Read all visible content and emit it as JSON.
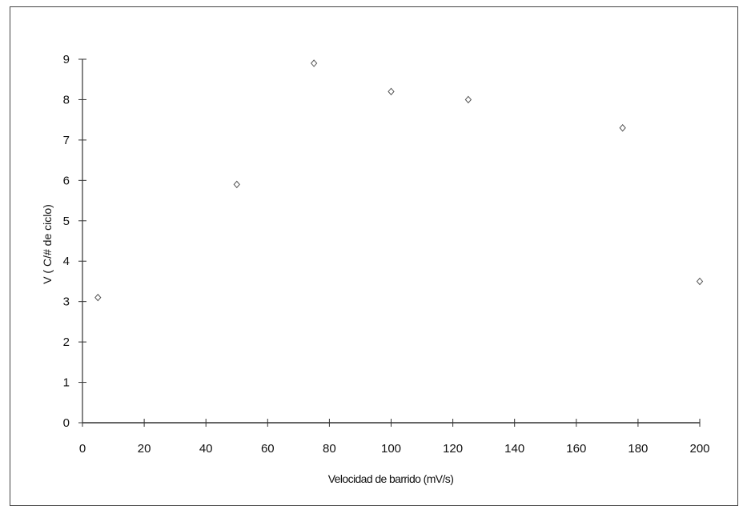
{
  "chart_data": {
    "type": "scatter",
    "title": "",
    "xlabel": "Velocidad de barrido (mV/s)",
    "ylabel": "V (   C/# de ciclo)",
    "xlim": [
      0,
      200
    ],
    "ylim": [
      0,
      9
    ],
    "xticks": [
      0,
      20,
      40,
      60,
      80,
      100,
      120,
      140,
      160,
      180,
      200
    ],
    "yticks": [
      0,
      1,
      2,
      3,
      4,
      5,
      6,
      7,
      8,
      9
    ],
    "grid": false,
    "legend": "none",
    "marker": "diamond",
    "colors": {
      "axis": "#333333",
      "marker": "#555555",
      "frame": "#444444"
    },
    "series": [
      {
        "x": [
          5,
          50,
          75,
          100,
          125,
          175,
          200
        ],
        "y": [
          3.1,
          5.9,
          8.9,
          8.2,
          8.0,
          7.3,
          3.5
        ]
      }
    ]
  }
}
